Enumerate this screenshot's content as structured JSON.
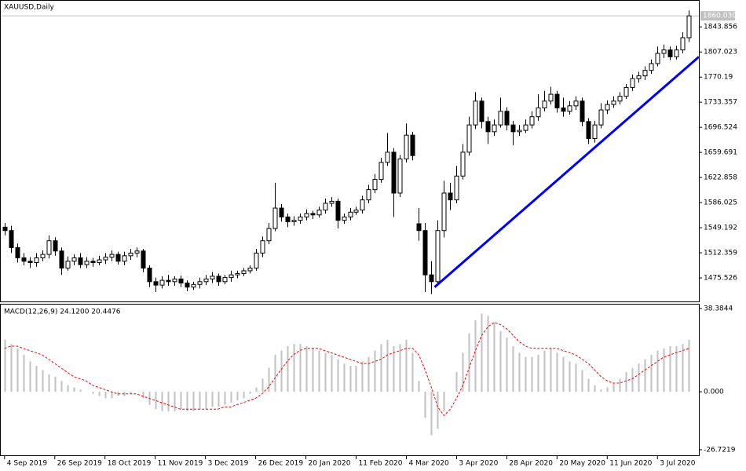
{
  "chart_data": [
    {
      "type": "candlestick",
      "title": "XAUUSD,Daily",
      "open": [
        1550,
        1545,
        1520,
        1505,
        1500,
        1498,
        1505,
        1510,
        1530,
        1515,
        1490,
        1500,
        1505,
        1495,
        1500,
        1498,
        1502,
        1506,
        1510,
        1500,
        1508,
        1512,
        1515,
        1490,
        1470,
        1465,
        1472,
        1470,
        1474,
        1468,
        1462,
        1466,
        1470,
        1474,
        1478,
        1470,
        1476,
        1480,
        1482,
        1486,
        1490,
        1512,
        1530,
        1548,
        1578,
        1565,
        1558,
        1560,
        1565,
        1570,
        1568,
        1575,
        1585,
        1588,
        1560,
        1565,
        1572,
        1575,
        1590,
        1605,
        1620,
        1645,
        1660,
        1600,
        1650,
        1685,
        1555,
        1545,
        1480,
        1470,
        1545,
        1600,
        1590,
        1625,
        1660,
        1700,
        1735,
        1705,
        1690,
        1700,
        1720,
        1700,
        1690,
        1692,
        1700,
        1712,
        1725,
        1735,
        1745,
        1725,
        1720,
        1728,
        1735,
        1705,
        1680,
        1700,
        1722,
        1730,
        1735,
        1742,
        1755,
        1768,
        1772,
        1780,
        1790,
        1805,
        1810,
        1800,
        1810,
        1828
      ],
      "high": [
        1556,
        1552,
        1526,
        1512,
        1506,
        1512,
        1516,
        1538,
        1535,
        1520,
        1507,
        1510,
        1512,
        1506,
        1505,
        1508,
        1512,
        1516,
        1514,
        1514,
        1518,
        1520,
        1518,
        1494,
        1476,
        1478,
        1480,
        1478,
        1479,
        1472,
        1470,
        1476,
        1480,
        1484,
        1482,
        1480,
        1486,
        1486,
        1490,
        1494,
        1518,
        1536,
        1556,
        1615,
        1584,
        1570,
        1566,
        1570,
        1576,
        1574,
        1580,
        1592,
        1594,
        1592,
        1570,
        1578,
        1580,
        1596,
        1612,
        1628,
        1652,
        1688,
        1666,
        1656,
        1702,
        1690,
        1578,
        1556,
        1500,
        1560,
        1618,
        1615,
        1640,
        1672,
        1712,
        1748,
        1740,
        1712,
        1708,
        1740,
        1726,
        1706,
        1700,
        1708,
        1720,
        1745,
        1750,
        1756,
        1750,
        1740,
        1735,
        1742,
        1740,
        1710,
        1706,
        1732,
        1736,
        1742,
        1748,
        1760,
        1774,
        1778,
        1786,
        1796,
        1815,
        1818,
        1815,
        1816,
        1836,
        1868
      ],
      "low": [
        1538,
        1512,
        1498,
        1494,
        1490,
        1492,
        1500,
        1504,
        1508,
        1480,
        1486,
        1494,
        1490,
        1490,
        1492,
        1494,
        1496,
        1500,
        1495,
        1494,
        1502,
        1506,
        1484,
        1462,
        1455,
        1460,
        1464,
        1464,
        1462,
        1456,
        1458,
        1460,
        1465,
        1468,
        1464,
        1466,
        1470,
        1475,
        1478,
        1482,
        1486,
        1506,
        1525,
        1544,
        1558,
        1550,
        1552,
        1555,
        1560,
        1562,
        1564,
        1570,
        1580,
        1548,
        1555,
        1560,
        1568,
        1570,
        1585,
        1600,
        1615,
        1640,
        1565,
        1594,
        1645,
        1648,
        1530,
        1455,
        1452,
        1465,
        1535,
        1575,
        1585,
        1620,
        1655,
        1694,
        1695,
        1672,
        1684,
        1696,
        1692,
        1670,
        1684,
        1688,
        1695,
        1706,
        1720,
        1730,
        1718,
        1712,
        1715,
        1722,
        1698,
        1672,
        1674,
        1695,
        1716,
        1725,
        1730,
        1738,
        1750,
        1762,
        1766,
        1775,
        1786,
        1798,
        1795,
        1796,
        1805,
        1822
      ],
      "close": [
        1545,
        1520,
        1505,
        1500,
        1498,
        1505,
        1510,
        1530,
        1515,
        1490,
        1500,
        1505,
        1495,
        1500,
        1498,
        1502,
        1506,
        1510,
        1500,
        1508,
        1512,
        1515,
        1490,
        1470,
        1465,
        1472,
        1470,
        1474,
        1468,
        1462,
        1466,
        1470,
        1474,
        1478,
        1470,
        1476,
        1480,
        1482,
        1486,
        1490,
        1512,
        1530,
        1548,
        1578,
        1565,
        1558,
        1560,
        1565,
        1570,
        1568,
        1575,
        1585,
        1588,
        1560,
        1565,
        1572,
        1575,
        1590,
        1605,
        1620,
        1645,
        1660,
        1600,
        1650,
        1685,
        1655,
        1545,
        1480,
        1470,
        1545,
        1600,
        1590,
        1625,
        1660,
        1700,
        1735,
        1705,
        1690,
        1700,
        1720,
        1700,
        1690,
        1692,
        1700,
        1712,
        1725,
        1735,
        1745,
        1725,
        1720,
        1728,
        1735,
        1705,
        1680,
        1700,
        1722,
        1730,
        1735,
        1742,
        1755,
        1768,
        1772,
        1780,
        1790,
        1805,
        1810,
        1800,
        1810,
        1828,
        1860
      ],
      "last_price": {
        "value": 1860.03,
        "label": "1860.030"
      },
      "trendline": {
        "x": [
          68.5,
          110.6
        ],
        "y": [
          1462,
          1800
        ],
        "color": "#0000ff"
      },
      "ylim": [
        1441,
        1881
      ],
      "yticks": [
        1843.856,
        1807.023,
        1770.19,
        1733.357,
        1696.524,
        1659.691,
        1622.858,
        1586.025,
        1549.192,
        1512.359,
        1475.526
      ],
      "xlim": [
        -0.6,
        110.6
      ],
      "xticks": [
        {
          "value": 0,
          "label": "4 Sep 2019"
        },
        {
          "value": 8,
          "label": "26 Sep 2019"
        },
        {
          "value": 16,
          "label": "18 Oct 2019"
        },
        {
          "value": 24,
          "label": "11 Nov 2019"
        },
        {
          "value": 32,
          "label": "3 Dec 2019"
        },
        {
          "value": 40,
          "label": "26 Dec 2019"
        },
        {
          "value": 48,
          "label": "20 Jan 2020"
        },
        {
          "value": 56,
          "label": "11 Feb 2020"
        },
        {
          "value": 64,
          "label": "4 Mar 2020"
        },
        {
          "value": 72,
          "label": "3 Apr 2020"
        },
        {
          "value": 80,
          "label": "28 Apr 2020"
        },
        {
          "value": 88,
          "label": "20 May 2020"
        },
        {
          "value": 96,
          "label": "11 Jun 2020"
        },
        {
          "value": 104,
          "label": "3 Jul 2020"
        }
      ]
    },
    {
      "type": "macd",
      "title": "MACD(12,26,9) 24.1200 20.4476",
      "series": [
        {
          "type": "bar",
          "color": "#c0c0c0",
          "values": [
            24,
            22,
            20,
            17,
            14,
            12,
            10,
            8,
            7,
            5,
            3,
            2,
            1,
            0,
            -1,
            -2,
            -3,
            -3,
            -2,
            -2,
            -1,
            0,
            -3,
            -6,
            -8,
            -9,
            -9,
            -9,
            -8,
            -9,
            -9,
            -8,
            -8,
            -7,
            -7,
            -6,
            -5,
            -4,
            -3,
            -1,
            2,
            6,
            11,
            17,
            19,
            21,
            22,
            22,
            21,
            20,
            19,
            18,
            17,
            15,
            13,
            12,
            12,
            14,
            16,
            19,
            22,
            24,
            21,
            22,
            24,
            18,
            5,
            -12,
            -20,
            -17,
            -9,
            0,
            9,
            18,
            27,
            33,
            36,
            35,
            32,
            28,
            25,
            21,
            18,
            16,
            16,
            17,
            19,
            20,
            18,
            16,
            14,
            13,
            10,
            6,
            3,
            1,
            2,
            4,
            6,
            9,
            11,
            13,
            15,
            17,
            19,
            20,
            21,
            21,
            22,
            24
          ]
        },
        {
          "type": "line",
          "color": "#ff0000",
          "values": [
            20,
            21,
            21,
            20,
            19,
            18,
            17,
            15,
            13,
            11,
            9,
            7,
            6,
            5,
            3,
            2,
            1,
            0,
            -1,
            -1,
            -1,
            -1,
            -2,
            -3,
            -4,
            -5,
            -6,
            -7,
            -8,
            -8,
            -8,
            -8,
            -8,
            -8,
            -8,
            -7,
            -7,
            -6,
            -5,
            -4,
            -3,
            -1,
            2,
            6,
            10,
            14,
            17,
            19,
            20,
            20,
            20,
            19,
            18,
            17,
            16,
            15,
            14,
            13,
            13,
            14,
            15,
            17,
            18,
            19,
            20,
            20,
            17,
            10,
            2,
            -7,
            -11,
            -8,
            -3,
            3,
            11,
            19,
            26,
            30,
            32,
            31,
            29,
            26,
            23,
            21,
            20,
            20,
            20,
            20,
            20,
            19,
            18,
            17,
            15,
            13,
            10,
            7,
            5,
            4,
            4,
            5,
            6,
            8,
            10,
            12,
            14,
            16,
            17,
            18,
            19,
            20
          ]
        }
      ],
      "ylim": [
        -29.3,
        40.2
      ],
      "yticks": [
        38.3844,
        {
          "value": 0,
          "label": "0.000"
        },
        -26.7219
      ]
    }
  ]
}
